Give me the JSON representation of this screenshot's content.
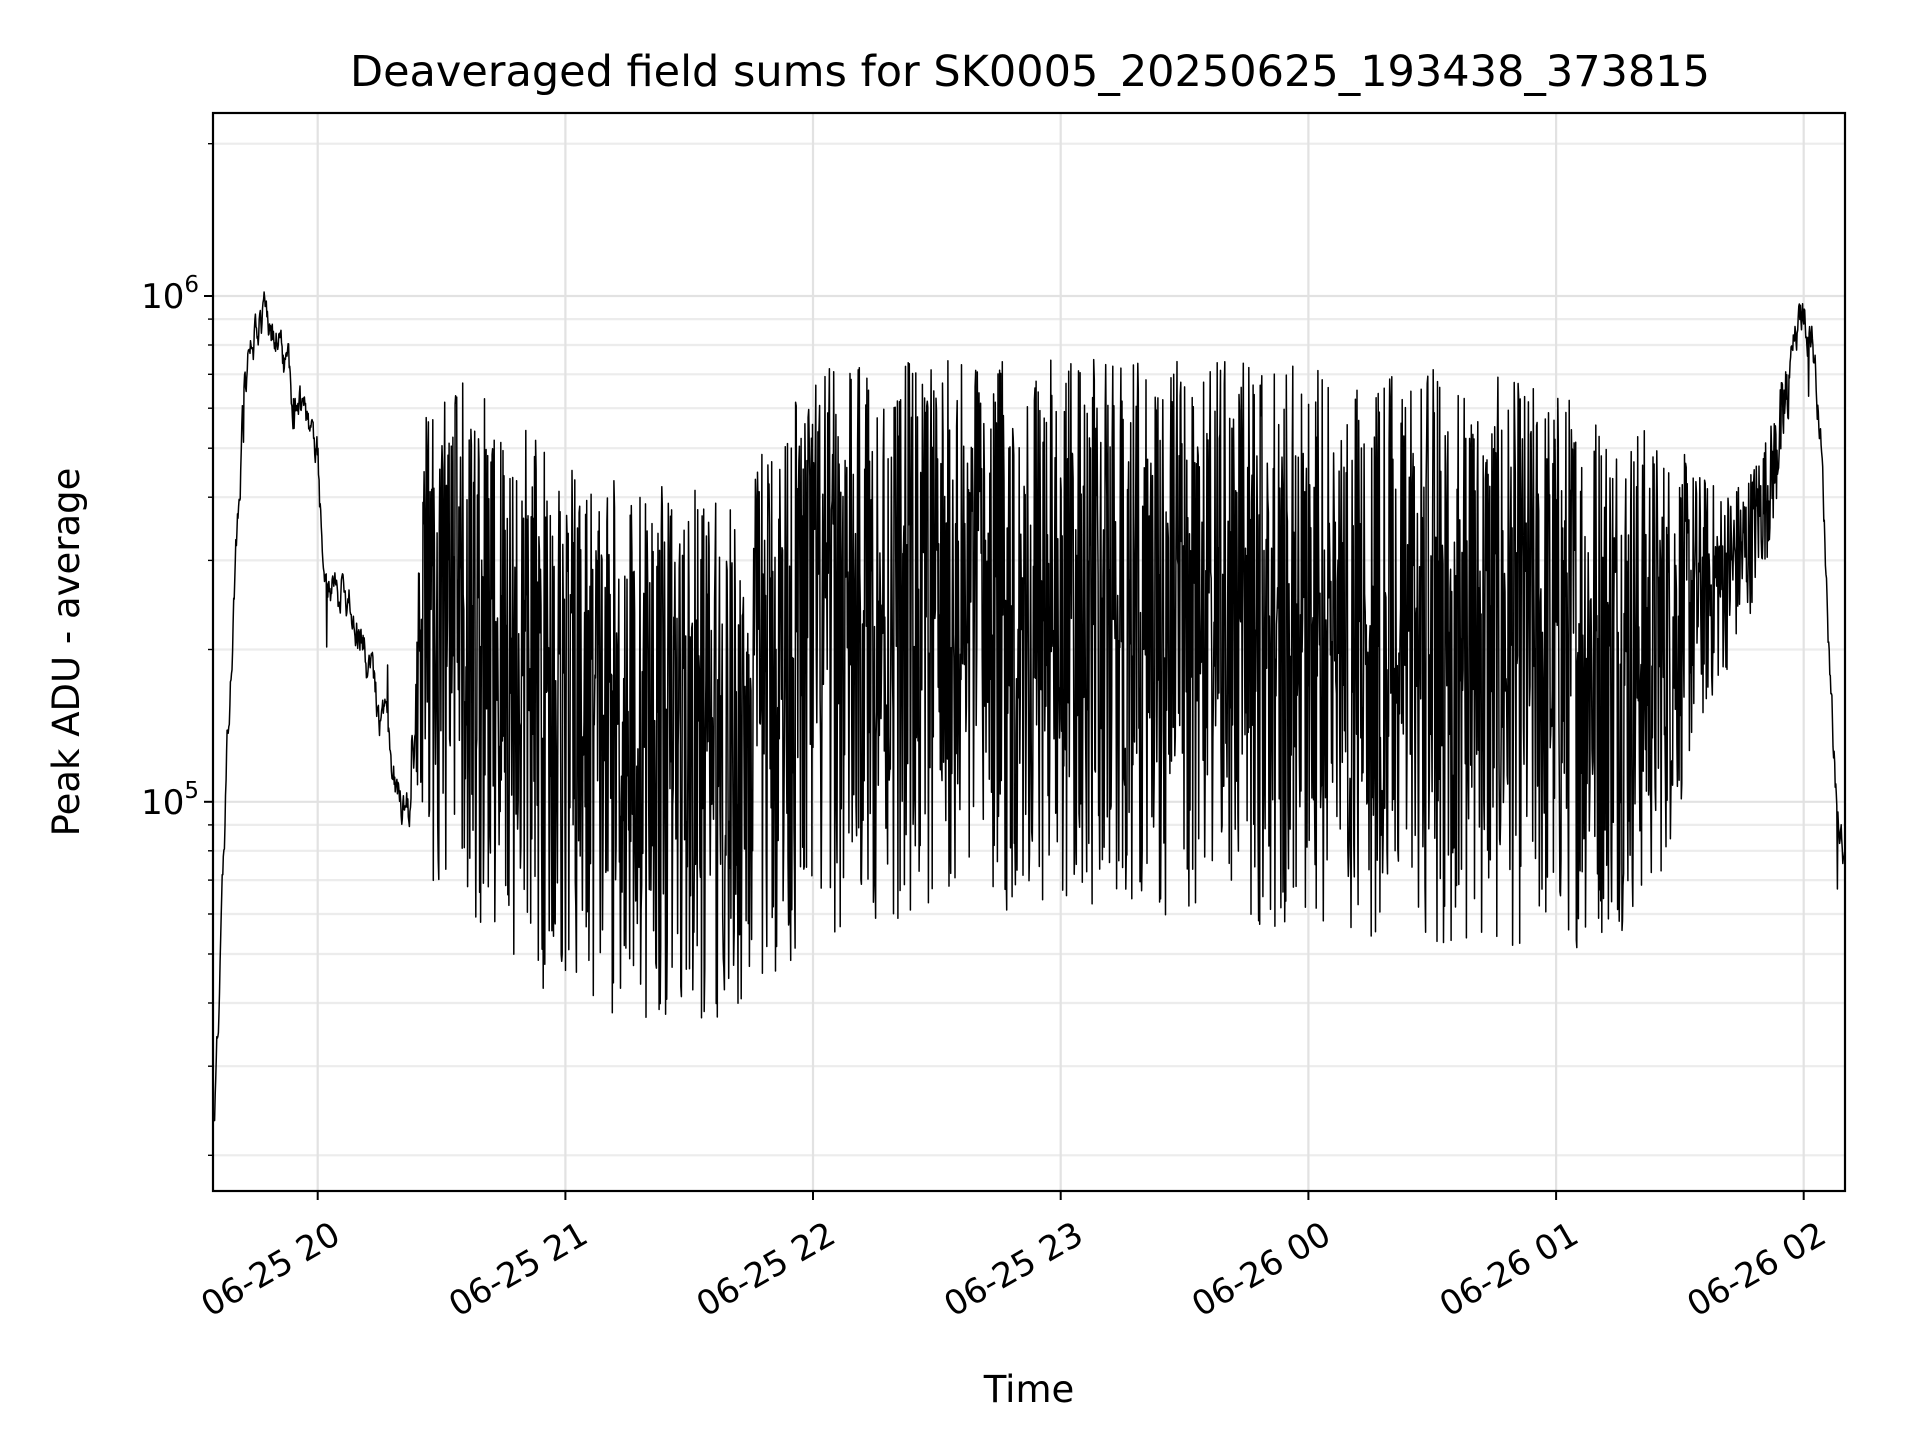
{
  "chart_data": {
    "type": "line",
    "title": "Deaveraged field sums for SK0005_20250625_193438_373815",
    "xlabel": "Time",
    "ylabel": "Peak ADU - average",
    "y_scale": "log",
    "xlim": [
      "2025-06-25 19:34:38",
      "2025-06-26 02:10:00"
    ],
    "ylim": [
      17000,
      2300000
    ],
    "x_ticks": [
      "2025-06-25 20:00",
      "2025-06-25 21:00",
      "2025-06-25 22:00",
      "2025-06-25 23:00",
      "2025-06-26 00:00",
      "2025-06-26 01:00",
      "2025-06-26 02:00"
    ],
    "x_tick_labels": [
      "06-25 20",
      "06-25 21",
      "06-25 22",
      "06-25 23",
      "06-26 00",
      "06-26 01",
      "06-26 02"
    ],
    "y_ticks": [
      100000,
      1000000
    ],
    "y_tick_labels": [
      {
        "base": "10",
        "exp": "5"
      },
      {
        "base": "10",
        "exp": "6"
      }
    ],
    "grid": true,
    "line_color": "#000000",
    "series": [
      {
        "x": [
          "2025-06-25 19:34:38",
          "2025-06-25 19:36",
          "2025-06-25 19:38",
          "2025-06-25 19:40",
          "2025-06-25 19:42",
          "2025-06-25 19:44",
          "2025-06-25 19:46",
          "2025-06-25 19:48",
          "2025-06-25 19:50",
          "2025-06-25 19:52",
          "2025-06-25 19:54",
          "2025-06-25 19:56",
          "2025-06-25 19:58",
          "2025-06-25 20:00",
          "2025-06-25 20:01",
          "2025-06-25 20:03",
          "2025-06-25 20:06",
          "2025-06-25 20:10",
          "2025-06-25 20:14",
          "2025-06-25 20:18",
          "2025-06-25 20:22",
          "2025-06-25 20:26",
          "2025-06-25 20:30",
          "2025-06-25 20:35",
          "2025-06-25 20:45",
          "2025-06-25 20:55",
          "2025-06-25 21:00",
          "2025-06-25 21:10",
          "2025-06-25 21:20",
          "2025-06-25 21:30",
          "2025-06-25 21:36",
          "2025-06-25 21:42",
          "2025-06-25 21:48",
          "2025-06-25 21:54",
          "2025-06-25 22:00",
          "2025-06-25 22:10",
          "2025-06-25 22:20",
          "2025-06-25 22:30",
          "2025-06-25 22:40",
          "2025-06-25 22:50",
          "2025-06-25 23:00",
          "2025-06-25 23:20",
          "2025-06-25 23:40",
          "2025-06-26 00:00",
          "2025-06-26 00:20",
          "2025-06-26 00:40",
          "2025-06-26 01:00",
          "2025-06-26 01:10",
          "2025-06-26 01:20",
          "2025-06-26 01:26",
          "2025-06-26 01:30",
          "2025-06-26 01:34",
          "2025-06-26 01:40",
          "2025-06-26 01:46",
          "2025-06-26 01:52",
          "2025-06-26 01:56",
          "2025-06-26 02:00",
          "2025-06-26 02:02",
          "2025-06-26 02:04",
          "2025-06-26 02:06",
          "2025-06-26 02:08",
          "2025-06-26 02:10"
        ],
        "y": [
          22000,
          40000,
          120000,
          300000,
          580000,
          800000,
          920000,
          930000,
          850000,
          720000,
          620000,
          560000,
          520000,
          480000,
          320000,
          280000,
          260000,
          230000,
          165000,
          115000,
          95000,
          180000,
          260000,
          300000,
          270000,
          200000,
          120000,
          80000,
          60000,
          48000,
          42000,
          40000,
          42000,
          47000,
          56000,
          62000,
          64000,
          66000,
          68000,
          70000,
          70000,
          70000,
          68000,
          70000,
          68000,
          66000,
          70000,
          74000,
          80000,
          100000,
          140000,
          180000,
          220000,
          290000,
          480000,
          700000,
          920000,
          860000,
          560000,
          220000,
          100000,
          75000
        ],
        "band_hi": [
          22000,
          40000,
          120000,
          300000,
          580000,
          800000,
          920000,
          930000,
          850000,
          720000,
          620000,
          560000,
          520000,
          480000,
          320000,
          280000,
          260000,
          230000,
          165000,
          115000,
          95000,
          600000,
          700000,
          680000,
          620000,
          520000,
          460000,
          440000,
          430000,
          420000,
          400000,
          380000,
          520000,
          650000,
          720000,
          740000,
          750000,
          750000,
          750000,
          750000,
          750000,
          750000,
          750000,
          740000,
          730000,
          700000,
          680000,
          640000,
          580000,
          520000,
          500000,
          460000,
          420000,
          440000,
          560000,
          760000,
          920000,
          860000,
          560000,
          220000,
          100000,
          75000
        ],
        "band_lo": [
          22000,
          40000,
          120000,
          300000,
          580000,
          800000,
          920000,
          930000,
          850000,
          720000,
          620000,
          560000,
          520000,
          480000,
          320000,
          280000,
          260000,
          230000,
          165000,
          115000,
          95000,
          75000,
          60000,
          55000,
          48000,
          42000,
          40000,
          38000,
          37000,
          36000,
          36000,
          37000,
          41000,
          46000,
          52000,
          56000,
          58000,
          60000,
          60000,
          61000,
          61000,
          60000,
          58000,
          55000,
          52000,
          50000,
          50000,
          52000,
          58000,
          70000,
          95000,
          130000,
          170000,
          220000,
          320000,
          520000,
          920000,
          860000,
          560000,
          220000,
          100000,
          75000
        ]
      }
    ]
  }
}
